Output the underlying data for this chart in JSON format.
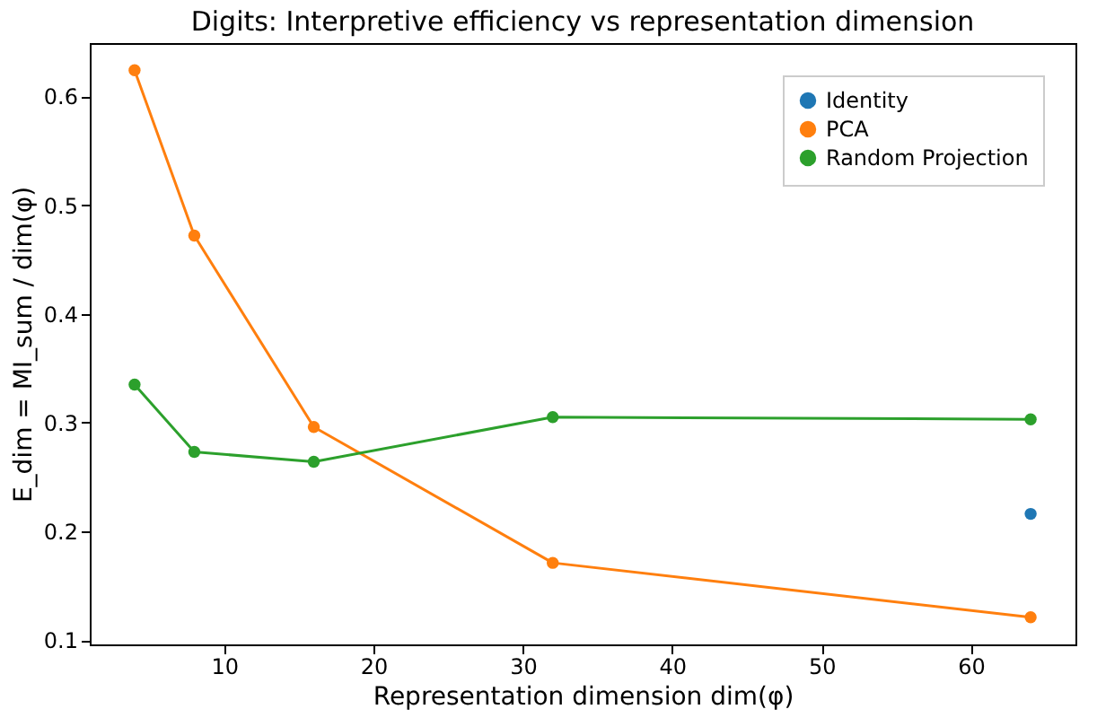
{
  "chart_data": {
    "type": "line",
    "title": "Digits: Interpretive efficiency vs representation dimension",
    "xlabel": "Representation dimension dim(φ)",
    "ylabel": "E_dim = MI_sum / dim(φ)",
    "series": [
      {
        "name": "Identity",
        "color": "#1f77b4",
        "x": [
          64
        ],
        "values": [
          0.216
        ]
      },
      {
        "name": "PCA",
        "color": "#ff7f0e",
        "x": [
          4,
          8,
          16,
          32,
          64
        ],
        "values": [
          0.624,
          0.472,
          0.296,
          0.171,
          0.121
        ]
      },
      {
        "name": "Random Projection",
        "color": "#2ca02c",
        "x": [
          4,
          8,
          16,
          32,
          64
        ],
        "values": [
          0.335,
          0.273,
          0.264,
          0.305,
          0.303
        ]
      }
    ],
    "xlim": [
      1,
      67
    ],
    "xticks": [
      10,
      20,
      30,
      40,
      50,
      60
    ],
    "ylim": [
      0.096,
      0.649
    ],
    "yticks": [
      0.1,
      0.2,
      0.3,
      0.4,
      0.5,
      0.6
    ],
    "legend": "top right",
    "marker": "circle",
    "line_style": "solid",
    "grid": false
  }
}
